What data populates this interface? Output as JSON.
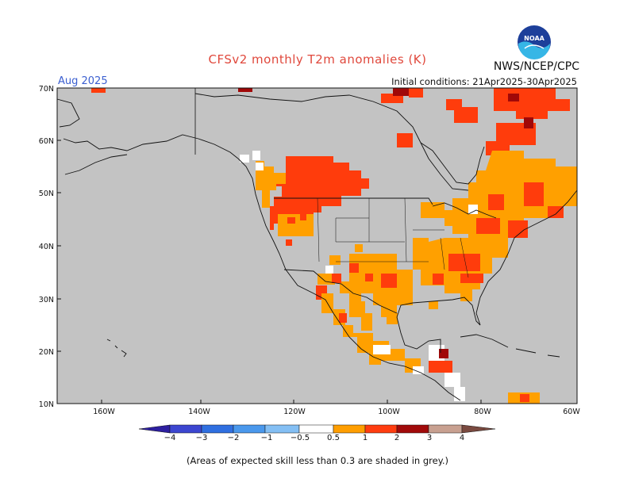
{
  "header": {
    "title": "CFSv2 monthly T2m anomalies (K)",
    "org": "NWS/NCEP/CPC",
    "valid_month": "Aug 2025",
    "initial_conditions": "Initial conditions: 21Apr2025-30Apr2025"
  },
  "logo": {
    "text": "NOAA",
    "colors": [
      "#1d3f9a",
      "#36b6e6"
    ]
  },
  "axes": {
    "lat_labels": [
      "70N",
      "60N",
      "50N",
      "40N",
      "30N",
      "20N",
      "10N"
    ],
    "lon_labels": [
      "160W",
      "140W",
      "120W",
      "100W",
      "80W",
      "60W"
    ]
  },
  "colorbar": {
    "labels": [
      "−4",
      "−3",
      "−2",
      "−1",
      "−0.5",
      "0.5",
      "1",
      "2",
      "3",
      "4"
    ],
    "colors": [
      "#2d1fa0",
      "#3c46d0",
      "#2f6fe0",
      "#4a98ec",
      "#84bff4",
      "#ffffff",
      "#ff9e00",
      "#ff3d10",
      "#a10a0a",
      "#c8a090",
      "#7a4a40"
    ]
  },
  "map": {
    "background": "#c3c3c3",
    "anomaly_colors": {
      "0.5-1": "#ffa000",
      "1-2": "#ff3c0c",
      "2-3": "#a00808",
      "white": "#ffffff"
    }
  },
  "footnote": "(Areas of expected skill less than 0.3 are shaded in grey.)"
}
